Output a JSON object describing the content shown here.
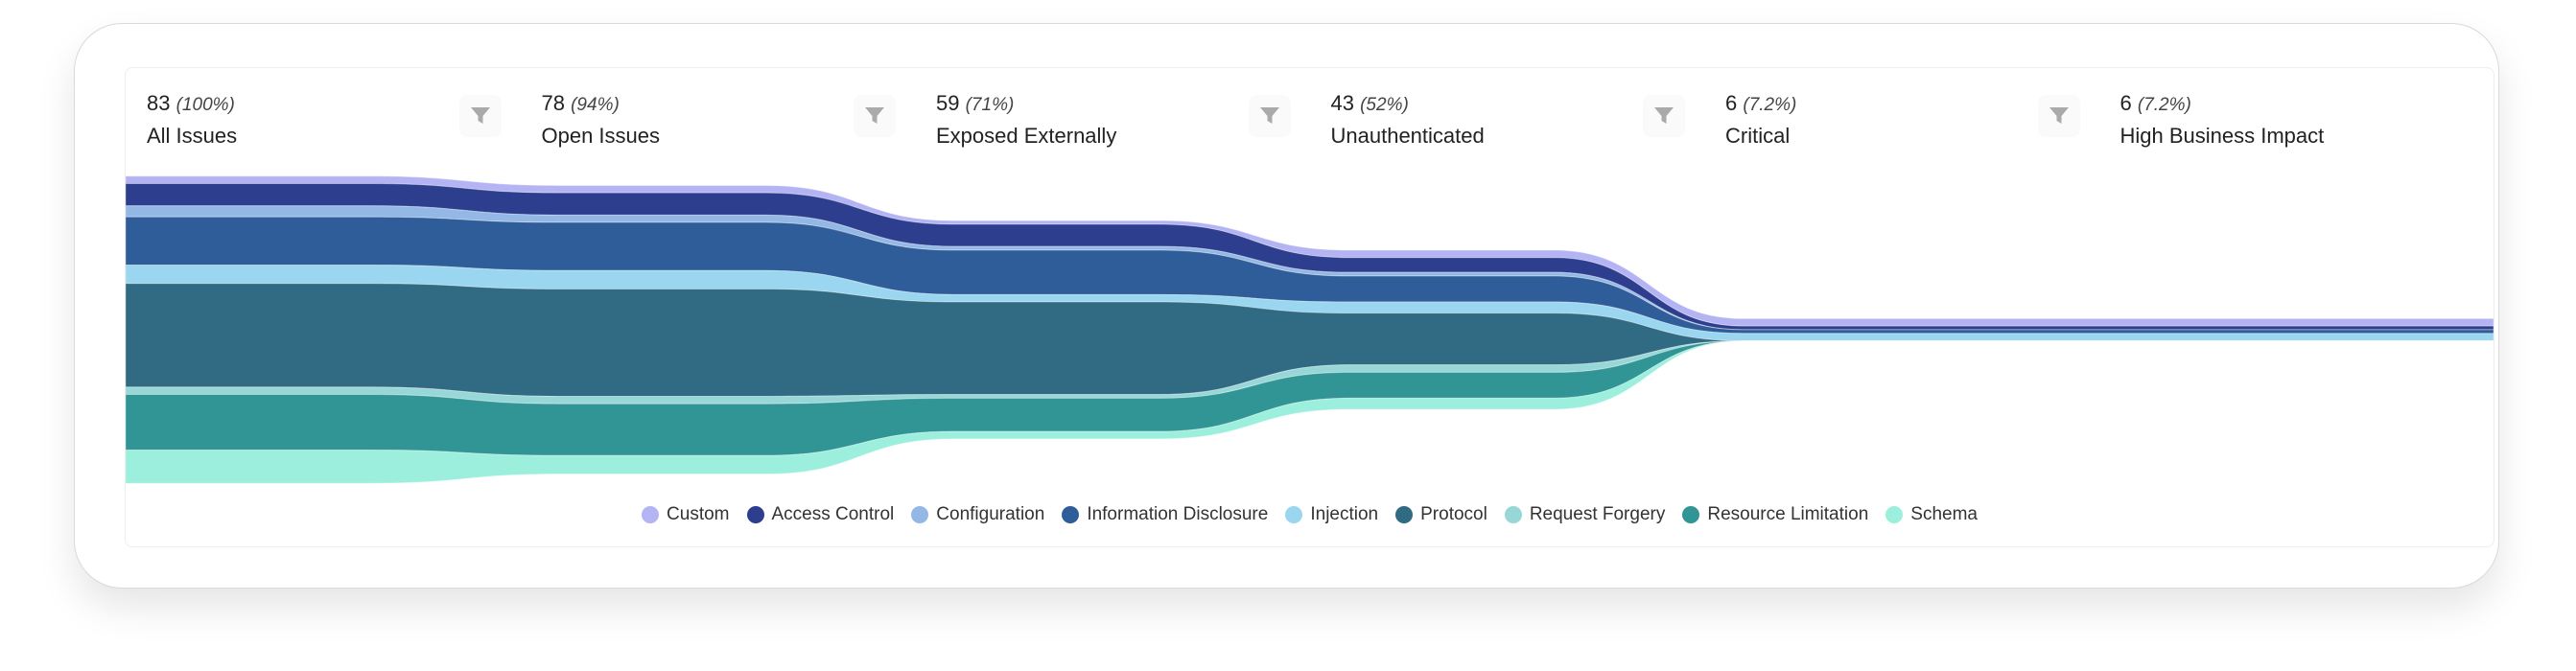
{
  "stages": [
    {
      "count": "83",
      "percent": "(100%)",
      "label": "All Issues",
      "has_filter": false
    },
    {
      "count": "78",
      "percent": "(94%)",
      "label": "Open Issues",
      "has_filter": true
    },
    {
      "count": "59",
      "percent": "(71%)",
      "label": "Exposed Externally",
      "has_filter": true
    },
    {
      "count": "43",
      "percent": "(52%)",
      "label": "Unauthenticated",
      "has_filter": true
    },
    {
      "count": "6",
      "percent": "(7.2%)",
      "label": "Critical",
      "has_filter": true
    },
    {
      "count": "6",
      "percent": "(7.2%)",
      "label": "High Business Impact",
      "has_filter": true
    }
  ],
  "filter_icon": "funnel-icon",
  "chart_data": {
    "type": "area",
    "subtype": "stacked-streamgraph-funnel",
    "categories": [
      "All Issues",
      "Open Issues",
      "Exposed Externally",
      "Unauthenticated",
      "Critical",
      "High Business Impact"
    ],
    "legend_position": "bottom",
    "grid": false,
    "series": [
      {
        "name": "Custom",
        "color": "#b4b4f4",
        "values": [
          2,
          2,
          1,
          2,
          2,
          2
        ]
      },
      {
        "name": "Access Control",
        "color": "#2e3e8f",
        "values": [
          6,
          6,
          6,
          4,
          1,
          1
        ]
      },
      {
        "name": "Configuration",
        "color": "#93b8e6",
        "values": [
          3,
          2,
          1,
          1,
          0,
          0
        ]
      },
      {
        "name": "Information Disclosure",
        "color": "#2f5d99",
        "values": [
          13,
          13,
          12,
          7,
          1,
          1
        ]
      },
      {
        "name": "Injection",
        "color": "#9bd6f1",
        "values": [
          5,
          5,
          2,
          3,
          2,
          2
        ]
      },
      {
        "name": "Protocol",
        "color": "#306a83",
        "values": [
          28,
          29,
          25,
          14,
          0,
          0
        ]
      },
      {
        "name": "Request Forgery",
        "color": "#98d7d7",
        "values": [
          2,
          2,
          1,
          2,
          0,
          0
        ]
      },
      {
        "name": "Resource Limitation",
        "color": "#319595",
        "values": [
          15,
          14,
          9,
          7,
          0,
          0
        ]
      },
      {
        "name": "Schema",
        "color": "#9cefdc",
        "values": [
          9,
          5,
          2,
          3,
          0,
          0
        ]
      }
    ]
  }
}
